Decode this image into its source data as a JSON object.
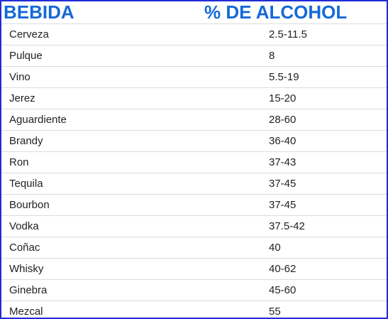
{
  "table": {
    "headers": [
      "BEBIDA",
      "% DE ALCOHOL"
    ],
    "rows": [
      [
        "Cerveza",
        "2.5-11.5"
      ],
      [
        "Pulque",
        "8"
      ],
      [
        "Vino",
        "5.5-19"
      ],
      [
        "Jerez",
        "15-20"
      ],
      [
        "Aguardiente",
        "28-60"
      ],
      [
        "Brandy",
        "36-40"
      ],
      [
        "Ron",
        "37-43"
      ],
      [
        "Tequila",
        "37-45"
      ],
      [
        "Bourbon",
        "37-45"
      ],
      [
        "Vodka",
        "37.5-42"
      ],
      [
        "Coñac",
        "40"
      ],
      [
        "Whisky",
        "40-62"
      ],
      [
        "Ginebra",
        "45-60"
      ],
      [
        "Mezcal",
        "55"
      ]
    ]
  },
  "colors": {
    "header_text": "#1569d8",
    "border": "#1f2bd6",
    "row_divider": "#dcdcdc"
  }
}
